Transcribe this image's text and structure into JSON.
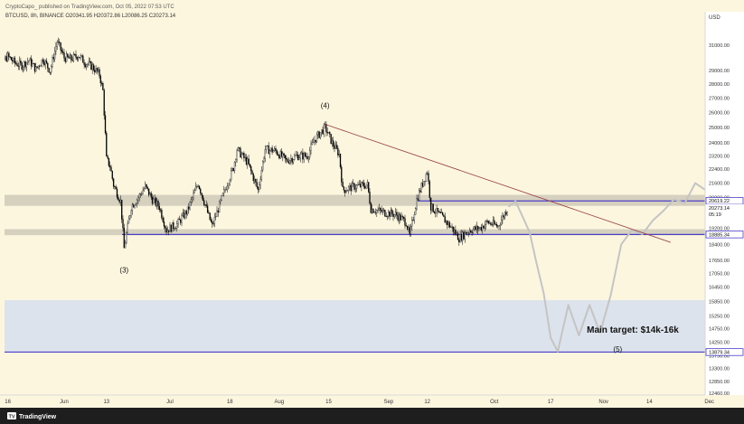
{
  "header": {
    "published_by": "CryptoCapo_ published on TradingView.com, Oct 05, 2022 07:53 UTC",
    "symbol_line": "BTCUSD, 8h, BINANCE  O20341.95  H20372.86  L20086.25  C20273.14"
  },
  "footer": {
    "brand": "TradingView",
    "logo_text": "TV"
  },
  "colors": {
    "background": "#fdf6df",
    "candle_up": "#ffffff",
    "candle_down": "#000000",
    "projection": "#c4c4c4",
    "zone": "#d6d0bf",
    "target_zone": "#dde3ec",
    "level_line": "#4a3fc7",
    "trendline": "#9c4a4a",
    "panel": "#ffffff"
  },
  "chart_data": {
    "type": "line",
    "title": "",
    "xlabel": "",
    "ylabel": "",
    "currency": "USD",
    "x_ticks": [
      "16",
      "Jun",
      "13",
      "Jul",
      "18",
      "Aug",
      "15",
      "Sep",
      "12",
      "Oct",
      "17",
      "Nov",
      "14",
      "Dec"
    ],
    "y_ticks": [
      31000,
      29000,
      28000,
      27000,
      26000,
      25000,
      24000,
      23200,
      22400,
      21600,
      20800,
      20000,
      19200,
      18400,
      17650,
      17050,
      16450,
      15850,
      15250,
      14750,
      14250,
      13750,
      13300,
      12850,
      12460
    ],
    "price_labels": [
      {
        "value": "20619.22",
        "role": "resistance"
      },
      {
        "value": "20273.14",
        "role": "last_price"
      },
      {
        "value": "05:19",
        "role": "countdown"
      },
      {
        "value": "18885.34",
        "role": "support"
      },
      {
        "value": "13879.34",
        "role": "target_low"
      }
    ],
    "zones": [
      {
        "name": "resistance-zone",
        "from": 20350,
        "to": 20950
      },
      {
        "name": "support-zone",
        "from": 18850,
        "to": 19150
      },
      {
        "name": "target-zone",
        "from": 13879,
        "to": 15900
      }
    ],
    "levels": [
      20619.22,
      18885.34,
      13879.34
    ],
    "wave_labels": [
      {
        "label": "(3)",
        "date": "2022-06-18"
      },
      {
        "label": "(4)",
        "date": "2022-08-14"
      },
      {
        "label": "(5)",
        "date": "2022-11-05"
      }
    ],
    "annotation": "Main target: $14k-16k",
    "trendline": {
      "start": [
        "2022-08-14",
        25200
      ],
      "end": [
        "2022-11-20",
        18500
      ]
    },
    "series": [
      {
        "role": "price",
        "points": [
          [
            "2022-05-11",
            30500
          ],
          [
            "2022-05-13",
            29300
          ],
          [
            "2022-05-16",
            30100
          ],
          [
            "2022-05-18",
            29600
          ],
          [
            "2022-05-20",
            29400
          ],
          [
            "2022-05-22",
            29800
          ],
          [
            "2022-05-24",
            29100
          ],
          [
            "2022-05-26",
            29900
          ],
          [
            "2022-05-28",
            29000
          ],
          [
            "2022-05-30",
            31300
          ],
          [
            "2022-06-01",
            30000
          ],
          [
            "2022-06-03",
            29900
          ],
          [
            "2022-06-05",
            30200
          ],
          [
            "2022-06-07",
            29600
          ],
          [
            "2022-06-09",
            29300
          ],
          [
            "2022-06-11",
            28700
          ],
          [
            "2022-06-12",
            27500
          ],
          [
            "2022-06-13",
            23000
          ],
          [
            "2022-06-14",
            22600
          ],
          [
            "2022-06-15",
            21500
          ],
          [
            "2022-06-17",
            20600
          ],
          [
            "2022-06-18",
            18200
          ],
          [
            "2022-06-20",
            20300
          ],
          [
            "2022-06-22",
            20800
          ],
          [
            "2022-06-24",
            21400
          ],
          [
            "2022-06-26",
            20700
          ],
          [
            "2022-06-28",
            20300
          ],
          [
            "2022-06-30",
            19100
          ],
          [
            "2022-07-03",
            19400
          ],
          [
            "2022-07-06",
            20100
          ],
          [
            "2022-07-09",
            21600
          ],
          [
            "2022-07-12",
            19800
          ],
          [
            "2022-07-13",
            19300
          ],
          [
            "2022-07-16",
            20900
          ],
          [
            "2022-07-19",
            22500
          ],
          [
            "2022-07-20",
            23600
          ],
          [
            "2022-07-23",
            22800
          ],
          [
            "2022-07-26",
            21200
          ],
          [
            "2022-07-28",
            23600
          ],
          [
            "2022-07-31",
            23500
          ],
          [
            "2022-08-03",
            22900
          ],
          [
            "2022-08-06",
            23200
          ],
          [
            "2022-08-09",
            23200
          ],
          [
            "2022-08-11",
            24200
          ],
          [
            "2022-08-14",
            25000
          ],
          [
            "2022-08-16",
            24000
          ],
          [
            "2022-08-18",
            23300
          ],
          [
            "2022-08-19",
            21200
          ],
          [
            "2022-08-22",
            21400
          ],
          [
            "2022-08-26",
            21500
          ],
          [
            "2022-08-27",
            20200
          ],
          [
            "2022-08-31",
            20000
          ],
          [
            "2022-09-03",
            19900
          ],
          [
            "2022-09-06",
            19500
          ],
          [
            "2022-09-07",
            18800
          ],
          [
            "2022-09-09",
            20700
          ],
          [
            "2022-09-12",
            22300
          ],
          [
            "2022-09-13",
            20300
          ],
          [
            "2022-09-16",
            19800
          ],
          [
            "2022-09-19",
            19200
          ],
          [
            "2022-09-21",
            18700
          ],
          [
            "2022-09-24",
            19100
          ],
          [
            "2022-09-27",
            19200
          ],
          [
            "2022-09-29",
            19500
          ],
          [
            "2022-10-02",
            19300
          ],
          [
            "2022-10-05",
            20300
          ]
        ]
      },
      {
        "role": "projection",
        "points": [
          [
            "2022-10-05",
            20300
          ],
          [
            "2022-10-07",
            20600
          ],
          [
            "2022-10-09",
            19800
          ],
          [
            "2022-10-11",
            19000
          ],
          [
            "2022-10-13",
            17500
          ],
          [
            "2022-10-15",
            16200
          ],
          [
            "2022-10-17",
            14400
          ],
          [
            "2022-10-19",
            13900
          ],
          [
            "2022-10-22",
            15700
          ],
          [
            "2022-10-25",
            14500
          ],
          [
            "2022-10-28",
            15700
          ],
          [
            "2022-10-31",
            14600
          ],
          [
            "2022-11-03",
            16100
          ],
          [
            "2022-11-06",
            18400
          ],
          [
            "2022-11-09",
            19100
          ],
          [
            "2022-11-12",
            18900
          ],
          [
            "2022-11-15",
            19600
          ],
          [
            "2022-11-18",
            20100
          ],
          [
            "2022-11-21",
            20700
          ],
          [
            "2022-11-24",
            20500
          ],
          [
            "2022-11-27",
            21600
          ],
          [
            "2022-11-30",
            21200
          ],
          [
            "2022-12-03",
            22000
          ],
          [
            "2022-12-06",
            23200
          ]
        ]
      }
    ]
  }
}
